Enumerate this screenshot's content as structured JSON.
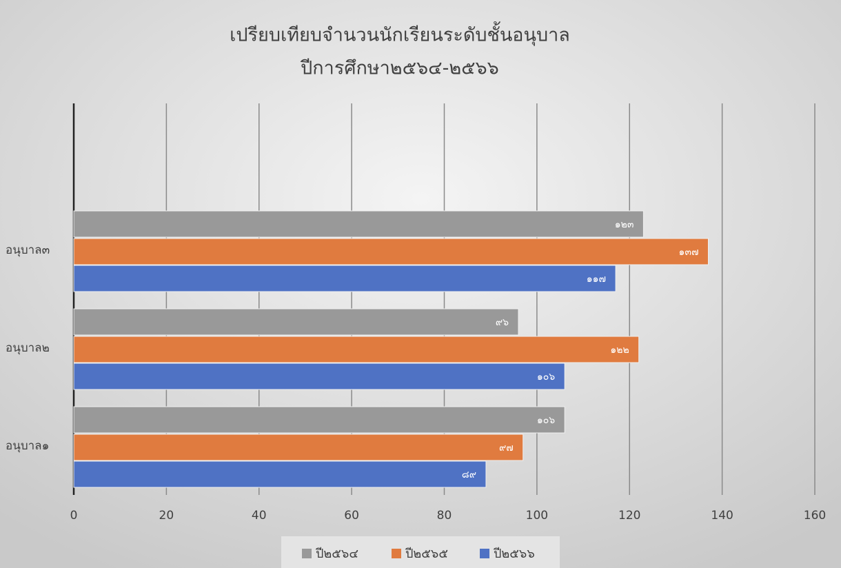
{
  "chart_data": {
    "type": "hbar",
    "title": "เปรียบเทียบจำนวนนักเรียนระดับชั้นอนุบาล",
    "subtitle": "ปีการศึกษา๒๕๖๔-๒๕๖๖",
    "categories": [
      "อนุบาล๑",
      "อนุบาล๒",
      "อนุบาล๓",
      null
    ],
    "series": [
      {
        "name": "ปี๒๕๖๔",
        "color": "#999999",
        "values": [
          106,
          96,
          123,
          null
        ],
        "value_labels": [
          "๑๐๖",
          "๙๖",
          "๑๒๓",
          null
        ]
      },
      {
        "name": "ปี๒๕๖๕",
        "color": "#e07b3f",
        "values": [
          97,
          122,
          137,
          null
        ],
        "value_labels": [
          "๙๗",
          "๑๒๒",
          "๑๓๗",
          null
        ]
      },
      {
        "name": "ปี๒๕๖๖",
        "color": "#4f72c4",
        "values": [
          89,
          106,
          117,
          null
        ],
        "value_labels": [
          "๘๙",
          "๑๐๖",
          "๑๑๗",
          null
        ]
      }
    ],
    "xlim": [
      0,
      160
    ],
    "xticks": [
      0,
      20,
      40,
      60,
      80,
      100,
      120,
      140,
      160
    ],
    "grid": true,
    "legend": "bottom"
  }
}
